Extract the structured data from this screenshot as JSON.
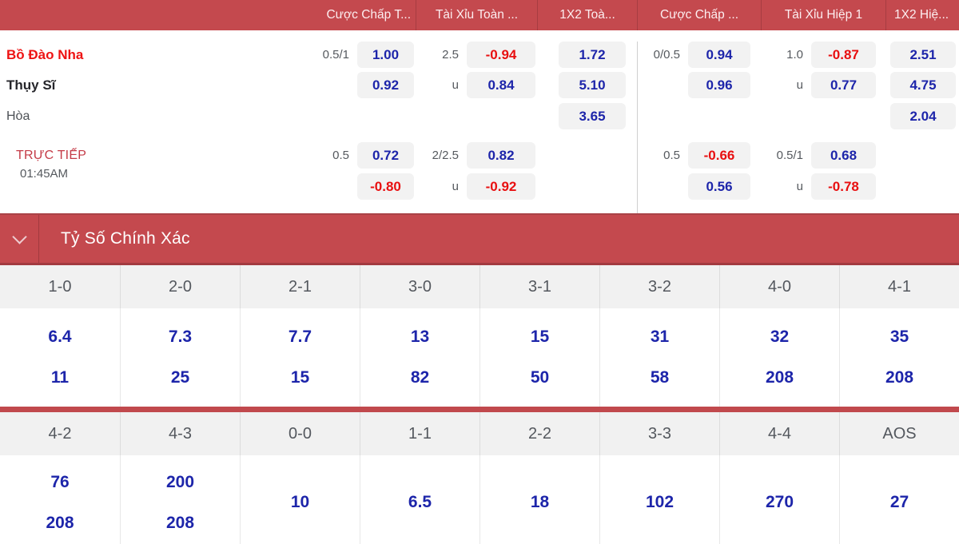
{
  "colors": {
    "header_red": "#c4494e",
    "divider_dark_red": "#a23a40",
    "odds_blue": "#1d25aa",
    "odds_negative_red": "#e80f10",
    "home_team_red": "#ee1313",
    "live_red": "#c43a46",
    "button_bg": "#f2f2f2",
    "label_row_bg": "#f1f1f1"
  },
  "market_header": {
    "col1": "Cược Chấp T...",
    "col2": "Tài Xỉu Toàn ...",
    "col3": "1X2 Toà...",
    "col4": "Cược Chấp ...",
    "col5": "Tài Xỉu Hiệp 1",
    "col6": "1X2 Hiệ..."
  },
  "odds": {
    "home": {
      "team": "Bồ Đào Nha",
      "hcp_line": "0.5/1",
      "hcp": "1.00",
      "ou_line": "2.5",
      "ou": "-0.94",
      "x12": "1.72",
      "hcp1_line": "0/0.5",
      "hcp1": "0.94",
      "ou1_line": "1.0",
      "ou1": "-0.87",
      "x12h1": "2.51"
    },
    "away": {
      "team": "Thụy Sĩ",
      "hcp": "0.92",
      "ou_line": "u",
      "ou": "0.84",
      "x12": "5.10",
      "hcp1": "0.96",
      "ou1_line": "u",
      "ou1": "0.77",
      "x12h1": "4.75"
    },
    "draw": {
      "team": "Hòa",
      "x12": "3.65",
      "x12h1": "2.04"
    },
    "live1": {
      "hcp_line": "0.5",
      "hcp": "0.72",
      "ou_line": "2/2.5",
      "ou": "0.82",
      "hcp1_line": "0.5",
      "hcp1": "-0.66",
      "ou1_line": "0.5/1",
      "ou1": "0.68"
    },
    "live2": {
      "hcp": "-0.80",
      "ou_line": "u",
      "ou": "-0.92",
      "hcp1": "0.56",
      "ou1_line": "u",
      "ou1": "-0.78"
    }
  },
  "live": {
    "label": "TRỰC TIẾP",
    "time": "01:45AM"
  },
  "section": {
    "title": "Tỷ Số Chính Xác"
  },
  "correct_score": {
    "row1": [
      {
        "score": "1-0",
        "v1": "6.4",
        "v2": "11"
      },
      {
        "score": "2-0",
        "v1": "7.3",
        "v2": "25"
      },
      {
        "score": "2-1",
        "v1": "7.7",
        "v2": "15"
      },
      {
        "score": "3-0",
        "v1": "13",
        "v2": "82"
      },
      {
        "score": "3-1",
        "v1": "15",
        "v2": "50"
      },
      {
        "score": "3-2",
        "v1": "31",
        "v2": "58"
      },
      {
        "score": "4-0",
        "v1": "32",
        "v2": "208"
      },
      {
        "score": "4-1",
        "v1": "35",
        "v2": "208"
      }
    ],
    "row2": [
      {
        "score": "4-2",
        "v1": "76",
        "v2": "208"
      },
      {
        "score": "4-3",
        "v1": "200",
        "v2": "208"
      },
      {
        "score": "0-0",
        "v1": "10",
        "v2": ""
      },
      {
        "score": "1-1",
        "v1": "6.5",
        "v2": ""
      },
      {
        "score": "2-2",
        "v1": "18",
        "v2": ""
      },
      {
        "score": "3-3",
        "v1": "102",
        "v2": ""
      },
      {
        "score": "4-4",
        "v1": "270",
        "v2": ""
      },
      {
        "score": "AOS",
        "v1": "27",
        "v2": ""
      }
    ]
  }
}
